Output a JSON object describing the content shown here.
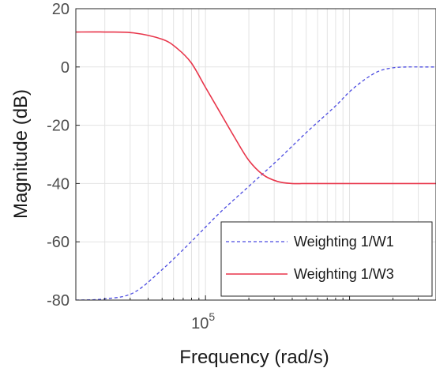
{
  "chart_data": {
    "type": "line",
    "xlabel": "Frequency  (rad/s)",
    "ylabel": "Magnitude (dB)",
    "x_scale": "log",
    "xlim": [
      12589,
      3981072
    ],
    "ylim": [
      -80,
      20
    ],
    "x_tick_labels": [
      {
        "value": 100000,
        "base": "10",
        "exponent": "5"
      }
    ],
    "y_ticks": [
      20,
      0,
      -20,
      -40,
      -60,
      -80
    ],
    "y_tick_labels": [
      "20",
      "0",
      "-20",
      "-40",
      "-60",
      "-80"
    ],
    "grid": true,
    "legend_position": "bottom-right",
    "series": [
      {
        "name": "Weighting 1/W1",
        "color": "#4a4ae0",
        "style": "dashed",
        "x": [
          12589,
          20000,
          31623,
          50119,
          79433,
          125893,
          199526,
          316228,
          501187,
          794328,
          1000000,
          1258925,
          1584893,
          1995262,
          2511886,
          3162278,
          3981072
        ],
        "y": [
          -80,
          -79.6,
          -77.5,
          -69.5,
          -60,
          -50,
          -41,
          -32,
          -22.5,
          -13.5,
          -8.5,
          -4.5,
          -1.5,
          -0.3,
          0,
          0,
          0
        ]
      },
      {
        "name": "Weighting 1/W3",
        "color": "#e8354a",
        "style": "solid",
        "x": [
          12589,
          20000,
          31623,
          50119,
          63096,
          79433,
          100000,
          125893,
          158489,
          199526,
          251189,
          316228,
          398107,
          501187,
          794328,
          1258925,
          1995262,
          3162278,
          3981072
        ],
        "y": [
          12,
          12,
          11.7,
          9.5,
          6.5,
          1.5,
          -7,
          -15.5,
          -24,
          -32,
          -37,
          -39.3,
          -40,
          -40,
          -40,
          -40,
          -40,
          -40,
          -40
        ]
      }
    ]
  }
}
